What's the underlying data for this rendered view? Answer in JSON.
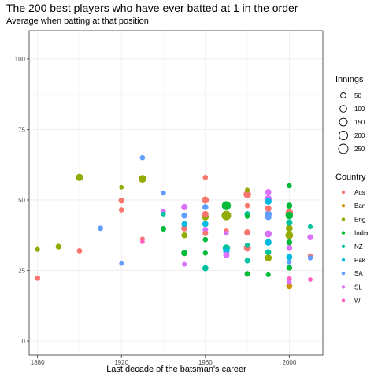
{
  "title": "The 200 best players who have ever batted at 1 in the order",
  "subtitle": "Average when batting at that position",
  "chart_data": {
    "type": "scatter",
    "title": "The 200 best players who have ever batted at 1 in the order",
    "subtitle": "Average when batting at that position",
    "xlabel": "Last decade of the batsman's career",
    "ylabel": "",
    "xlim": [
      1876,
      2016
    ],
    "ylim": [
      -5,
      110
    ],
    "x_ticks": [
      1880,
      1920,
      1960,
      2000
    ],
    "x_tick_labels": [
      "1880",
      "1920",
      "1960",
      "2000"
    ],
    "y_ticks": [
      0,
      25,
      50,
      75,
      100
    ],
    "y_tick_labels": [
      "0",
      "25",
      "50",
      "75",
      "100"
    ],
    "grid": true,
    "size_legend": {
      "title": "Innings",
      "values": [
        50,
        100,
        150,
        200,
        250
      ],
      "labels": [
        "50",
        "100",
        "150",
        "200",
        "250"
      ]
    },
    "color_legend": {
      "title": "Country",
      "items": [
        {
          "name": "Aus",
          "color": "#F8766D"
        },
        {
          "name": "Ban",
          "color": "#D39200"
        },
        {
          "name": "Eng",
          "color": "#93AA00"
        },
        {
          "name": "India",
          "color": "#00BA38"
        },
        {
          "name": "NZ",
          "color": "#00C19F"
        },
        {
          "name": "Pak",
          "color": "#00B9E3"
        },
        {
          "name": "SA",
          "color": "#619CFF"
        },
        {
          "name": "SL",
          "color": "#DB72FB"
        },
        {
          "name": "WI",
          "color": "#FF61C3"
        }
      ]
    },
    "points": [
      {
        "x": 1880,
        "y": 32.5,
        "innings": 30,
        "country": "Eng"
      },
      {
        "x": 1880,
        "y": 22.3,
        "innings": 45,
        "country": "Aus"
      },
      {
        "x": 1890,
        "y": 33.5,
        "innings": 55,
        "country": "Eng"
      },
      {
        "x": 1900,
        "y": 58.0,
        "innings": 120,
        "country": "Eng"
      },
      {
        "x": 1900,
        "y": 32.0,
        "innings": 45,
        "country": "Aus"
      },
      {
        "x": 1910,
        "y": 40.0,
        "innings": 45,
        "country": "SA"
      },
      {
        "x": 1920,
        "y": 54.5,
        "innings": 25,
        "country": "Eng"
      },
      {
        "x": 1920,
        "y": 49.8,
        "innings": 60,
        "country": "Aus"
      },
      {
        "x": 1920,
        "y": 46.5,
        "innings": 40,
        "country": "Aus"
      },
      {
        "x": 1920,
        "y": 27.5,
        "innings": 25,
        "country": "SA"
      },
      {
        "x": 1930,
        "y": 65.0,
        "innings": 40,
        "country": "SA"
      },
      {
        "x": 1930,
        "y": 57.5,
        "innings": 140,
        "country": "Eng"
      },
      {
        "x": 1930,
        "y": 36.2,
        "innings": 30,
        "country": "Aus"
      },
      {
        "x": 1930,
        "y": 35.2,
        "innings": 25,
        "country": "WI"
      },
      {
        "x": 1940,
        "y": 52.5,
        "innings": 35,
        "country": "SA"
      },
      {
        "x": 1940,
        "y": 46.0,
        "innings": 35,
        "country": "SL"
      },
      {
        "x": 1940,
        "y": 45.0,
        "innings": 30,
        "country": "NZ"
      },
      {
        "x": 1940,
        "y": 39.8,
        "innings": 50,
        "country": "India"
      },
      {
        "x": 1950,
        "y": 47.5,
        "innings": 80,
        "country": "SL"
      },
      {
        "x": 1950,
        "y": 44.5,
        "innings": 65,
        "country": "SA"
      },
      {
        "x": 1950,
        "y": 41.5,
        "innings": 60,
        "country": "Pak"
      },
      {
        "x": 1950,
        "y": 40.0,
        "innings": 80,
        "country": "Aus"
      },
      {
        "x": 1950,
        "y": 37.5,
        "innings": 65,
        "country": "Eng"
      },
      {
        "x": 1950,
        "y": 31.2,
        "innings": 75,
        "country": "India"
      },
      {
        "x": 1950,
        "y": 27.2,
        "innings": 30,
        "country": "SL"
      },
      {
        "x": 1960,
        "y": 58.0,
        "innings": 40,
        "country": "Aus"
      },
      {
        "x": 1960,
        "y": 50.0,
        "innings": 110,
        "country": "Aus"
      },
      {
        "x": 1960,
        "y": 47.5,
        "innings": 65,
        "country": "SA"
      },
      {
        "x": 1960,
        "y": 45.0,
        "innings": 80,
        "country": "Aus"
      },
      {
        "x": 1960,
        "y": 44.0,
        "innings": 100,
        "country": "Eng"
      },
      {
        "x": 1960,
        "y": 41.5,
        "innings": 70,
        "country": "Pak"
      },
      {
        "x": 1960,
        "y": 39.5,
        "innings": 50,
        "country": "SL"
      },
      {
        "x": 1960,
        "y": 38.2,
        "innings": 50,
        "country": "Aus"
      },
      {
        "x": 1960,
        "y": 36.0,
        "innings": 40,
        "country": "India"
      },
      {
        "x": 1960,
        "y": 31.2,
        "innings": 35,
        "country": "India"
      },
      {
        "x": 1960,
        "y": 25.8,
        "innings": 70,
        "country": "NZ"
      },
      {
        "x": 1970,
        "y": 48.0,
        "innings": 220,
        "country": "India"
      },
      {
        "x": 1970,
        "y": 44.5,
        "innings": 250,
        "country": "Eng"
      },
      {
        "x": 1970,
        "y": 39.0,
        "innings": 40,
        "country": "Aus"
      },
      {
        "x": 1970,
        "y": 38.2,
        "innings": 30,
        "country": "SL"
      },
      {
        "x": 1970,
        "y": 33.0,
        "innings": 120,
        "country": "NZ"
      },
      {
        "x": 1970,
        "y": 31.8,
        "innings": 80,
        "country": "Pak"
      },
      {
        "x": 1970,
        "y": 30.5,
        "innings": 80,
        "country": "SL"
      },
      {
        "x": 1980,
        "y": 53.5,
        "innings": 30,
        "country": "Eng"
      },
      {
        "x": 1980,
        "y": 52.0,
        "innings": 140,
        "country": "Aus"
      },
      {
        "x": 1980,
        "y": 48.0,
        "innings": 40,
        "country": "Aus"
      },
      {
        "x": 1980,
        "y": 45.0,
        "innings": 60,
        "country": "NZ"
      },
      {
        "x": 1980,
        "y": 44.2,
        "innings": 30,
        "country": "India"
      },
      {
        "x": 1980,
        "y": 38.5,
        "innings": 80,
        "country": "Aus"
      },
      {
        "x": 1980,
        "y": 34.0,
        "innings": 40,
        "country": "NZ"
      },
      {
        "x": 1980,
        "y": 33.0,
        "innings": 110,
        "country": "Aus"
      },
      {
        "x": 1980,
        "y": 28.5,
        "innings": 50,
        "country": "NZ"
      },
      {
        "x": 1980,
        "y": 23.8,
        "innings": 50,
        "country": "India"
      },
      {
        "x": 1990,
        "y": 52.8,
        "innings": 70,
        "country": "SL"
      },
      {
        "x": 1990,
        "y": 50.5,
        "innings": 100,
        "country": "SL"
      },
      {
        "x": 1990,
        "y": 49.5,
        "innings": 90,
        "country": "Pak"
      },
      {
        "x": 1990,
        "y": 47.0,
        "innings": 80,
        "country": "Aus"
      },
      {
        "x": 1990,
        "y": 45.0,
        "innings": 100,
        "country": "SA"
      },
      {
        "x": 1990,
        "y": 44.0,
        "innings": 80,
        "country": "SA"
      },
      {
        "x": 1990,
        "y": 38.0,
        "innings": 110,
        "country": "SL"
      },
      {
        "x": 1990,
        "y": 35.0,
        "innings": 90,
        "country": "Pak"
      },
      {
        "x": 1990,
        "y": 31.5,
        "innings": 60,
        "country": "NZ"
      },
      {
        "x": 1990,
        "y": 29.5,
        "innings": 100,
        "country": "Eng"
      },
      {
        "x": 1990,
        "y": 23.5,
        "innings": 30,
        "country": "India"
      },
      {
        "x": 2000,
        "y": 55.0,
        "innings": 35,
        "country": "India"
      },
      {
        "x": 2000,
        "y": 48.0,
        "innings": 70,
        "country": "India"
      },
      {
        "x": 2000,
        "y": 45.5,
        "innings": 130,
        "country": "Aus"
      },
      {
        "x": 2000,
        "y": 44.5,
        "innings": 130,
        "country": "India"
      },
      {
        "x": 2000,
        "y": 42.0,
        "innings": 80,
        "country": "NZ"
      },
      {
        "x": 2000,
        "y": 40.0,
        "innings": 100,
        "country": "Eng"
      },
      {
        "x": 2000,
        "y": 37.5,
        "innings": 140,
        "country": "Eng"
      },
      {
        "x": 2000,
        "y": 35.0,
        "innings": 60,
        "country": "India"
      },
      {
        "x": 2000,
        "y": 33.0,
        "innings": 60,
        "country": "SL"
      },
      {
        "x": 2000,
        "y": 29.8,
        "innings": 70,
        "country": "Pak"
      },
      {
        "x": 2000,
        "y": 28.0,
        "innings": 30,
        "country": "SA"
      },
      {
        "x": 2000,
        "y": 26.0,
        "innings": 60,
        "country": "India"
      },
      {
        "x": 2000,
        "y": 22.0,
        "innings": 40,
        "country": "WI"
      },
      {
        "x": 2000,
        "y": 20.8,
        "innings": 30,
        "country": "SL"
      },
      {
        "x": 2000,
        "y": 19.5,
        "innings": 70,
        "country": "Ban"
      },
      {
        "x": 2010,
        "y": 40.5,
        "innings": 30,
        "country": "NZ"
      },
      {
        "x": 2010,
        "y": 36.8,
        "innings": 60,
        "country": "SL"
      },
      {
        "x": 2010,
        "y": 30.2,
        "innings": 35,
        "country": "Aus"
      },
      {
        "x": 2010,
        "y": 29.5,
        "innings": 35,
        "country": "SA"
      },
      {
        "x": 2010,
        "y": 21.8,
        "innings": 25,
        "country": "WI"
      }
    ]
  }
}
